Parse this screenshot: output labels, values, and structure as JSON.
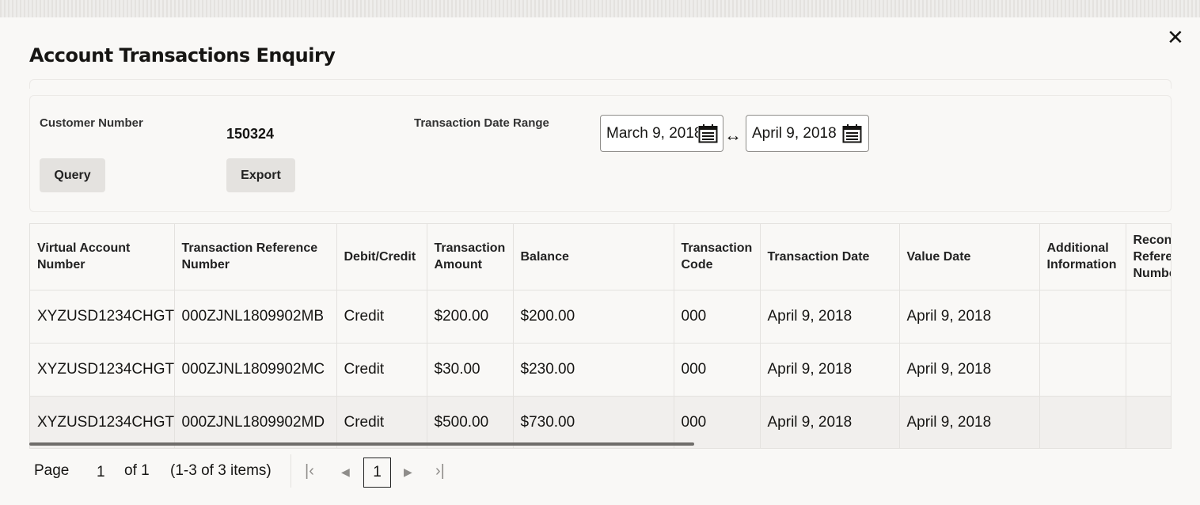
{
  "dialog": {
    "title": "Account Transactions Enquiry",
    "close_icon": "close-icon"
  },
  "form": {
    "customer_number_label": "Customer Number",
    "customer_number_value": "150324",
    "date_range_label": "Transaction Date Range",
    "date_from": "March 9, 2018",
    "date_to": "April 9, 2018",
    "range_separator": "↔",
    "query_label": "Query",
    "export_label": "Export"
  },
  "table": {
    "columns": [
      "Virtual Account Number",
      "Transaction Reference Number",
      "Debit/Credit",
      "Transaction Amount",
      "Balance",
      "Transaction Code",
      "Transaction Date",
      "Value Date",
      "Additional Information",
      "Reconciliation Reference Number"
    ],
    "rows": [
      [
        "XYZUSD1234CHGT",
        "000ZJNL1809902MB",
        "Credit",
        "$200.00",
        "$200.00",
        "000",
        "April 9, 2018",
        "April 9, 2018",
        "",
        ""
      ],
      [
        "XYZUSD1234CHGT",
        "000ZJNL1809902MC",
        "Credit",
        "$30.00",
        "$230.00",
        "000",
        "April 9, 2018",
        "April 9, 2018",
        "",
        ""
      ],
      [
        "XYZUSD1234CHGT",
        "000ZJNL1809902MD",
        "Credit",
        "$500.00",
        "$730.00",
        "000",
        "April 9, 2018",
        "April 9, 2018",
        "",
        ""
      ]
    ]
  },
  "pagination": {
    "page_label": "Page",
    "page_value": "1",
    "of_label": "of 1",
    "items_label": "(1-3 of 3 items)",
    "current_page": "1"
  }
}
